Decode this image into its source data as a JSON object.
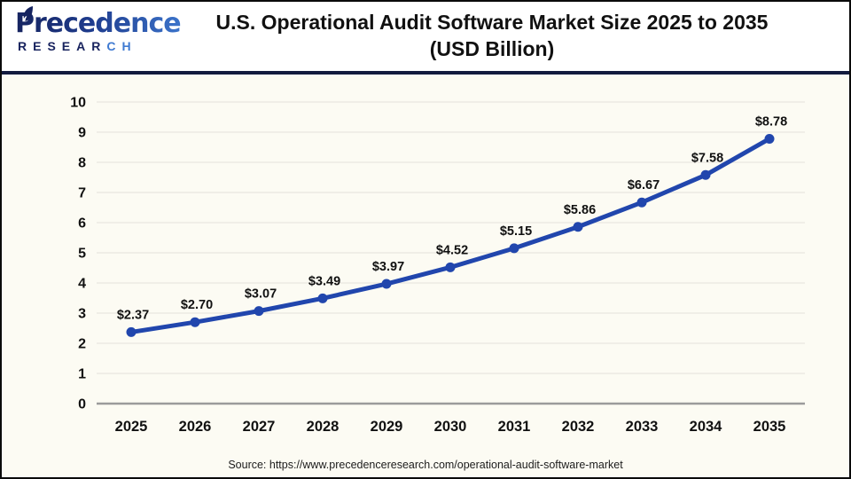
{
  "brand": {
    "name": "Precedence",
    "sub_first": "RESEAR",
    "sub_last": "CH"
  },
  "header": {
    "title_line1": "U.S. Operational Audit Software Market Size 2025 to 2035",
    "title_line2": "(USD Billion)"
  },
  "source": {
    "text": "Source: https://www.precedenceresearch.com/operational-audit-software-market"
  },
  "colors": {
    "line": "#2146ad",
    "marker": "#2146ad",
    "grid": "#e9e7e0",
    "axis": "#9b9b9b",
    "tick_label": "#111111",
    "data_label": "#111111",
    "divider": "#121a3e",
    "chart_bg": "#fcfbf3"
  },
  "chart_data": {
    "type": "line",
    "title": "U.S. Operational Audit Software Market Size 2025 to 2035 (USD Billion)",
    "xlabel": "",
    "ylabel": "",
    "categories": [
      "2025",
      "2026",
      "2027",
      "2028",
      "2029",
      "2030",
      "2031",
      "2032",
      "2033",
      "2034",
      "2035"
    ],
    "values": [
      2.37,
      2.7,
      3.07,
      3.49,
      3.97,
      4.52,
      5.15,
      5.86,
      6.67,
      7.58,
      8.78
    ],
    "point_labels": [
      "$2.37",
      "$2.70",
      "$3.07",
      "$3.49",
      "$3.97",
      "$4.52",
      "$5.15",
      "$5.86",
      "$6.67",
      "$7.58",
      "$8.78"
    ],
    "yticks": [
      0,
      1,
      2,
      3,
      4,
      5,
      6,
      7,
      8,
      9,
      10
    ],
    "ylim": [
      0,
      10
    ],
    "grid": "horizontal",
    "legend": "none"
  }
}
